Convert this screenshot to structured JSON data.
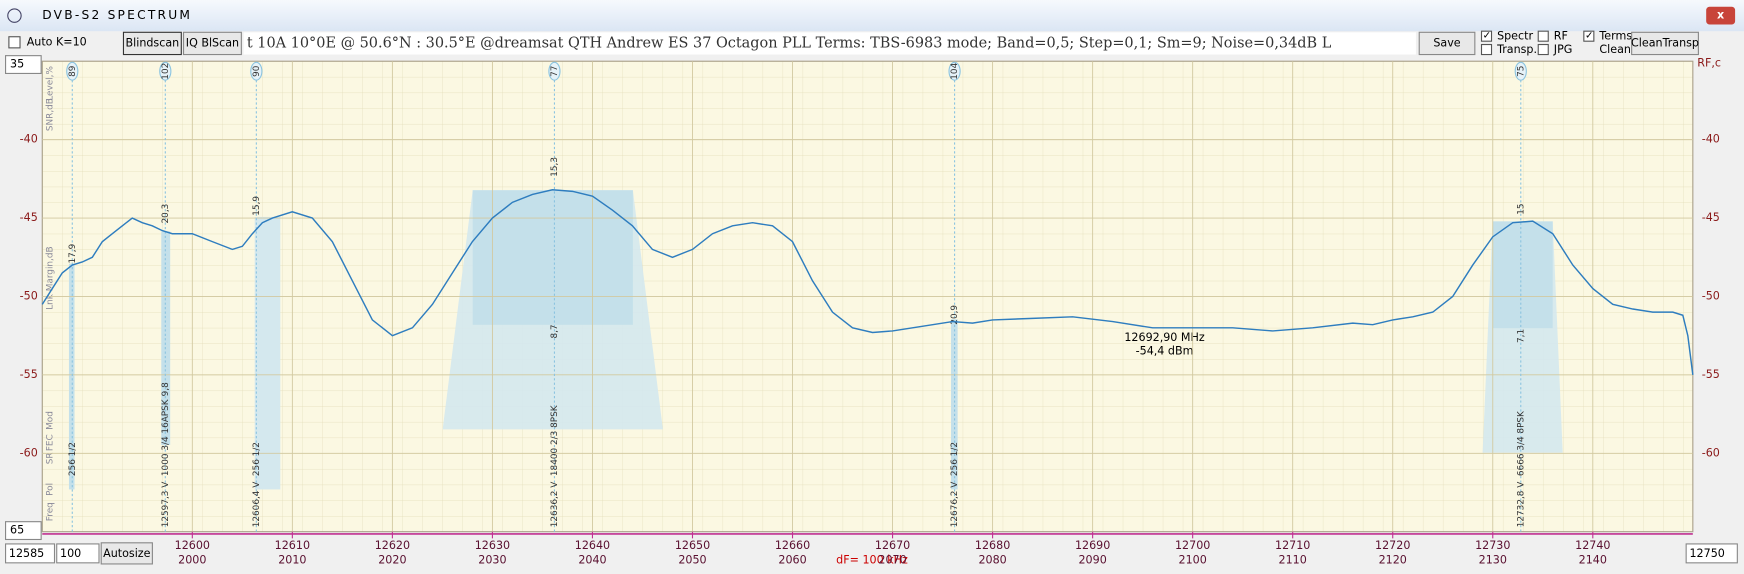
{
  "window": {
    "title": "DVB-S2   SPECTRUM"
  },
  "toolbar": {
    "auto": "Auto  K=10",
    "blindscan": "Blindscan",
    "iqscan": "IQ BlScan",
    "info": "t 10A   10°0E  @  50.6°N : 30.5°E    @dreamsat QTH Andrew ES 37 Octagon PLL    Terms:  TBS-6983 mode; Band=0,5; Step=0,1; Sm=9; Noise=0,34dB    L",
    "save": "Save",
    "spectr": "Spectr",
    "transp": "Transp.",
    "rf": "RF",
    "jpg": "JPG",
    "terms": "Terms",
    "clean": "Clean",
    "clean_transp": "CleanTransp"
  },
  "controls": {
    "ymax": "35",
    "ymin": "65",
    "fstart": "12585",
    "step": "100",
    "autosize": "Autosize",
    "fend": "12750"
  },
  "chart_data": {
    "type": "line",
    "x_label": "dF= 100 kHz",
    "right_label": "RF,c",
    "side_labels": [
      "Level,%",
      "SNR,dB",
      "Lnk Margin,dB",
      "Mod",
      "FEC",
      "SR",
      "Pol",
      "Freq"
    ],
    "cursor": [
      "12692,90 MHz",
      "-54,4 dBm"
    ],
    "xlim": [
      12585,
      12750
    ],
    "ylim": [
      -65,
      -35
    ],
    "xticks": [
      12600,
      12610,
      12620,
      12630,
      12640,
      12650,
      12660,
      12670,
      12680,
      12690,
      12700,
      12710,
      12720,
      12730,
      12740
    ],
    "if_ticks": [
      2000,
      2010,
      2020,
      2030,
      2040,
      2050,
      2060,
      2070,
      2080,
      2090,
      2100,
      2110,
      2120,
      2130,
      2140
    ],
    "yticks": [
      -40,
      -45,
      -50,
      -55,
      -60
    ],
    "series": [
      {
        "color": "#2e7dbf",
        "x": [
          12585,
          12586,
          12587,
          12588,
          12589,
          12590,
          12591,
          12592,
          12593,
          12594,
          12595,
          12596,
          12597,
          12598,
          12600,
          12602,
          12604,
          12605,
          12606,
          12607,
          12608,
          12610,
          12612,
          12614,
          12616,
          12618,
          12620,
          12622,
          12624,
          12626,
          12628,
          12630,
          12632,
          12634,
          12636,
          12638,
          12640,
          12642,
          12644,
          12646,
          12648,
          12650,
          12652,
          12654,
          12656,
          12658,
          12660,
          12662,
          12664,
          12666,
          12668,
          12670,
          12672,
          12674,
          12676,
          12678,
          12680,
          12684,
          12688,
          12692,
          12696,
          12700,
          12704,
          12708,
          12712,
          12716,
          12718,
          12720,
          12722,
          12724,
          12726,
          12728,
          12730,
          12732,
          12734,
          12736,
          12738,
          12740,
          12742,
          12744,
          12746,
          12748,
          12749,
          12749.5,
          12750
        ],
        "values": [
          -50.5,
          -49.5,
          -48.5,
          -48,
          -47.8,
          -47.5,
          -46.5,
          -46,
          -45.5,
          -45,
          -45.3,
          -45.5,
          -45.8,
          -46,
          -46,
          -46.5,
          -47,
          -46.8,
          -46,
          -45.3,
          -45,
          -44.6,
          -45,
          -46.5,
          -49,
          -51.5,
          -52.5,
          -52,
          -50.5,
          -48.5,
          -46.5,
          -45,
          -44,
          -43.5,
          -43.2,
          -43.3,
          -43.6,
          -44.5,
          -45.5,
          -47,
          -47.5,
          -47,
          -46,
          -45.5,
          -45.3,
          -45.5,
          -46.5,
          -49,
          -51,
          -52,
          -52.3,
          -52.2,
          -52,
          -51.8,
          -51.6,
          -51.7,
          -51.5,
          -51.4,
          -51.3,
          -51.6,
          -52,
          -52,
          -52,
          -52.2,
          -52,
          -51.7,
          -51.8,
          -51.5,
          -51.3,
          -51,
          -50,
          -48,
          -46.2,
          -45.3,
          -45.2,
          -46,
          -48,
          -49.5,
          -50.5,
          -50.8,
          -51,
          -51,
          -51.2,
          -52.5,
          -55
        ]
      }
    ],
    "transponders": [
      {
        "freq": 12588,
        "id": "89",
        "level": "17,9",
        "info": "256 1/2"
      },
      {
        "freq": 12597.3,
        "id": "102",
        "level": "20,3",
        "margin": "9,8",
        "info": "1000 3/4 16APSK",
        "label": "12597,3  V"
      },
      {
        "freq": 12606.4,
        "id": "90",
        "level": "15,9",
        "info": "256 1/2",
        "label": "12606,4  V"
      },
      {
        "freq": 12636.2,
        "id": "77",
        "level": "15,3",
        "margin": "8,7",
        "info": "18400 2/3 8PSK",
        "label": "12636,2  V"
      },
      {
        "freq": 12676.2,
        "id": "104",
        "level": "20,9",
        "info": "256 1/2",
        "label": "12676,2  V"
      },
      {
        "freq": 12732.8,
        "id": "75",
        "level": "15",
        "margin": "7,1",
        "info": "6666 3/4 8PSK",
        "label": "12732,8  V"
      }
    ]
  }
}
